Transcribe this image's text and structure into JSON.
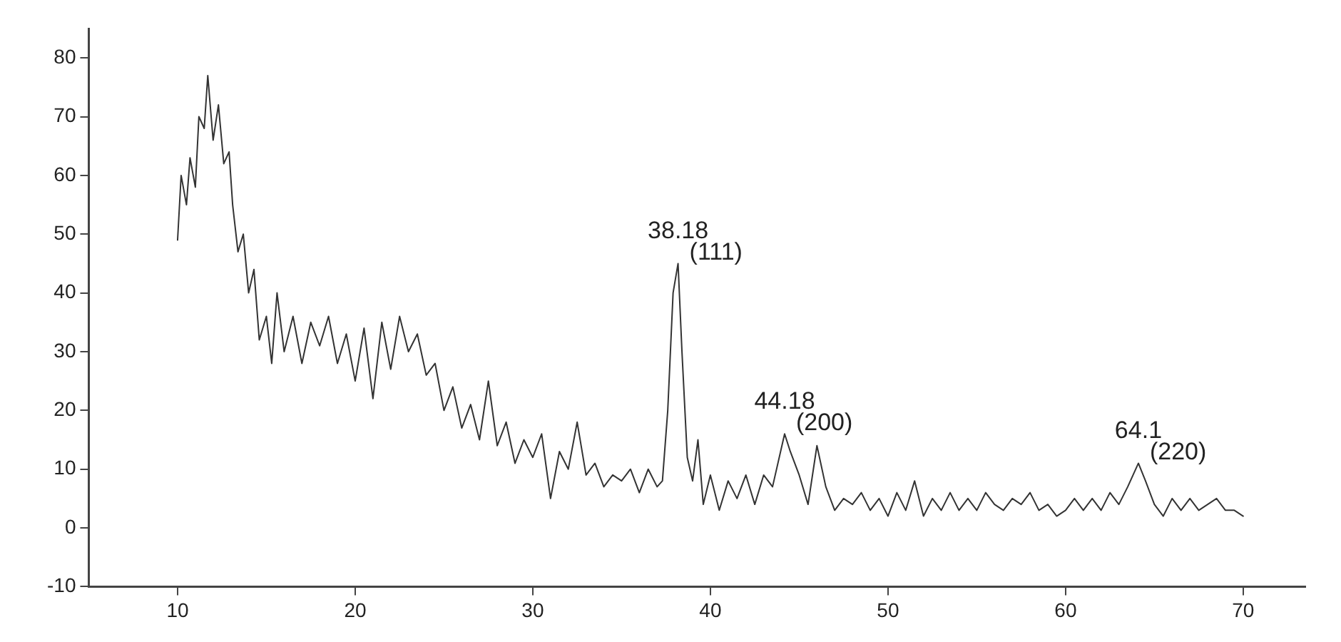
{
  "chart_data": {
    "type": "line",
    "xlim": [
      5,
      73.5
    ],
    "ylim": [
      -10,
      85
    ],
    "xticks": [
      10,
      20,
      30,
      40,
      50,
      60,
      70
    ],
    "yticks": [
      -10,
      0,
      10,
      20,
      30,
      40,
      50,
      60,
      70,
      80
    ],
    "grid": false,
    "legend": false,
    "marker": "none",
    "line_style": "solid",
    "series": [
      {
        "color": "#333333",
        "x": [
          10,
          10.2,
          10.5,
          10.7,
          11,
          11.2,
          11.5,
          11.7,
          12,
          12.3,
          12.6,
          12.9,
          13.1,
          13.4,
          13.7,
          14,
          14.3,
          14.6,
          15,
          15.3,
          15.6,
          16,
          16.5,
          17,
          17.5,
          18,
          18.5,
          19,
          19.5,
          20,
          20.5,
          21,
          21.5,
          22,
          22.5,
          23,
          23.5,
          24,
          24.5,
          25,
          25.5,
          26,
          26.5,
          27,
          27.5,
          28,
          28.5,
          29,
          29.5,
          30,
          30.5,
          31,
          31.5,
          32,
          32.5,
          33,
          33.5,
          34,
          34.5,
          35,
          35.5,
          36,
          36.5,
          37,
          37.3,
          37.6,
          37.9,
          38.18,
          38.4,
          38.7,
          39,
          39.3,
          39.6,
          40,
          40.5,
          41,
          41.5,
          42,
          42.5,
          43,
          43.5,
          44.18,
          44.5,
          45,
          45.5,
          46,
          46.5,
          47,
          47.5,
          48,
          48.5,
          49,
          49.5,
          50,
          50.5,
          51,
          51.5,
          52,
          52.5,
          53,
          53.5,
          54,
          54.5,
          55,
          55.5,
          56,
          56.5,
          57,
          57.5,
          58,
          58.5,
          59,
          59.5,
          60,
          60.5,
          61,
          61.5,
          62,
          62.5,
          63,
          63.5,
          64.1,
          64.5,
          65,
          65.5,
          66,
          66.5,
          67,
          67.5,
          68,
          68.5,
          69,
          69.5,
          70
        ],
        "values": [
          49,
          60,
          55,
          63,
          58,
          70,
          68,
          77,
          66,
          72,
          62,
          64,
          55,
          47,
          50,
          40,
          44,
          32,
          36,
          28,
          40,
          30,
          36,
          28,
          35,
          31,
          36,
          28,
          33,
          25,
          34,
          22,
          35,
          27,
          36,
          30,
          33,
          26,
          28,
          20,
          24,
          17,
          21,
          15,
          25,
          14,
          18,
          11,
          15,
          12,
          16,
          5,
          13,
          10,
          18,
          9,
          11,
          7,
          9,
          8,
          10,
          6,
          10,
          7,
          8,
          20,
          40,
          45,
          30,
          12,
          8,
          15,
          4,
          9,
          3,
          8,
          5,
          9,
          4,
          9,
          7,
          16,
          13,
          9,
          4,
          14,
          7,
          3,
          5,
          4,
          6,
          3,
          5,
          2,
          6,
          3,
          8,
          2,
          5,
          3,
          6,
          3,
          5,
          3,
          6,
          4,
          3,
          5,
          4,
          6,
          3,
          4,
          2,
          3,
          5,
          3,
          5,
          3,
          6,
          4,
          7,
          11,
          8,
          4,
          2,
          5,
          3,
          5,
          3,
          4,
          5,
          3,
          3,
          2
        ]
      }
    ],
    "annotations": [
      {
        "text": "38.18",
        "x": 38.18,
        "y": 45
      },
      {
        "text": "(111)",
        "x": 38.18,
        "y": 45
      },
      {
        "text": "44.18",
        "x": 44.18,
        "y": 16
      },
      {
        "text": "(200)",
        "x": 44.18,
        "y": 16
      },
      {
        "text": "64.1",
        "x": 64.1,
        "y": 11
      },
      {
        "text": "(220)",
        "x": 64.1,
        "y": 11
      }
    ]
  }
}
